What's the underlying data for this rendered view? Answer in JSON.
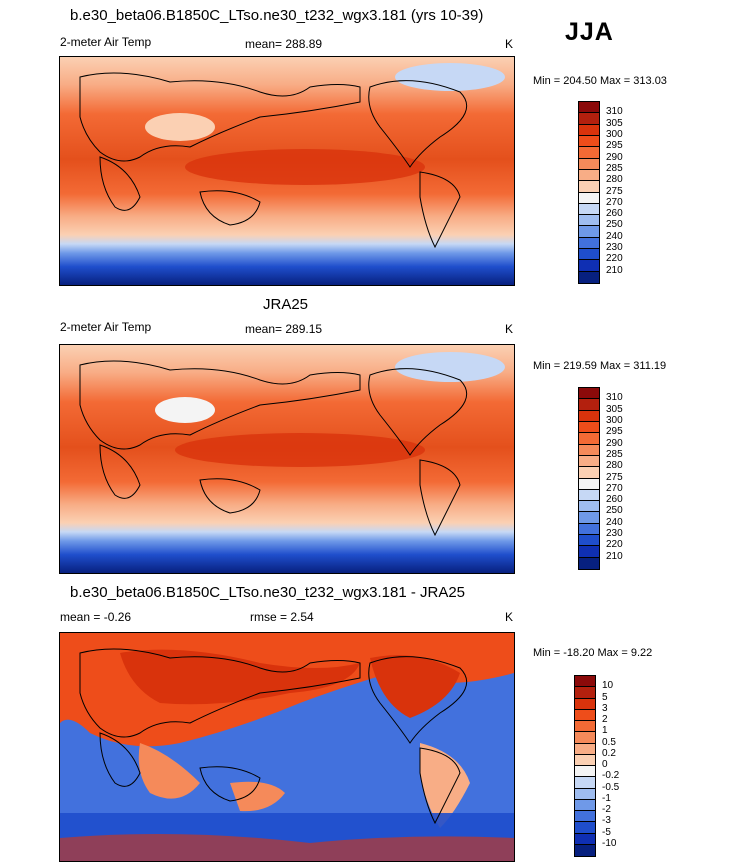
{
  "season": "JJA",
  "panels": [
    {
      "title": "b.e30_beta06.B1850C_LTso.ne30_t232_wgx3.181 (yrs 10-39)",
      "left_label": "2-meter Air Temp",
      "center_label": "mean= 288.89",
      "units": "K",
      "minmax": "Min = 204.50 Max = 313.03",
      "colorbar_labels": [
        "310",
        "305",
        "300",
        "295",
        "290",
        "285",
        "280",
        "275",
        "270",
        "260",
        "250",
        "240",
        "230",
        "220",
        "210"
      ],
      "colorbar_colors": [
        "#8b0a0a",
        "#b3200e",
        "#d9330c",
        "#ee4d1a",
        "#f36a35",
        "#f58a5a",
        "#f8ad86",
        "#fbd0b3",
        "#f4f4f4",
        "#c6d8f5",
        "#9fbdf0",
        "#6f99e8",
        "#4271dd",
        "#1f4ecc",
        "#0f2fb3",
        "#07207f"
      ]
    },
    {
      "title": "JRA25",
      "left_label": "2-meter Air Temp",
      "center_label": "mean= 289.15",
      "units": "K",
      "minmax": "Min = 219.59 Max = 311.19",
      "colorbar_labels": [
        "310",
        "305",
        "300",
        "295",
        "290",
        "285",
        "280",
        "275",
        "270",
        "260",
        "250",
        "240",
        "230",
        "220",
        "210"
      ],
      "colorbar_colors": [
        "#8b0a0a",
        "#b3200e",
        "#d9330c",
        "#ee4d1a",
        "#f36a35",
        "#f58a5a",
        "#f8ad86",
        "#fbd0b3",
        "#f4f4f4",
        "#c6d8f5",
        "#9fbdf0",
        "#6f99e8",
        "#4271dd",
        "#1f4ecc",
        "#0f2fb3",
        "#07207f"
      ]
    },
    {
      "title": "b.e30_beta06.B1850C_LTso.ne30_t232_wgx3.181 - JRA25",
      "left_label": "mean =  -0.26",
      "center_label": "rmse =   2.54",
      "units": "K",
      "minmax": "Min = -18.20 Max =   9.22",
      "colorbar_labels": [
        "10",
        "5",
        "3",
        "2",
        "1",
        "0.5",
        "0.2",
        "0",
        "-0.2",
        "-0.5",
        "-1",
        "-2",
        "-3",
        "-5",
        "-10"
      ],
      "colorbar_colors": [
        "#8b0a0a",
        "#b3200e",
        "#d9330c",
        "#ee4d1a",
        "#f36a35",
        "#f58a5a",
        "#f8ad86",
        "#fbd0b3",
        "#f4f4f4",
        "#c6d8f5",
        "#9fbdf0",
        "#6f99e8",
        "#4271dd",
        "#1f4ecc",
        "#0f2fb3",
        "#07207f"
      ]
    }
  ]
}
